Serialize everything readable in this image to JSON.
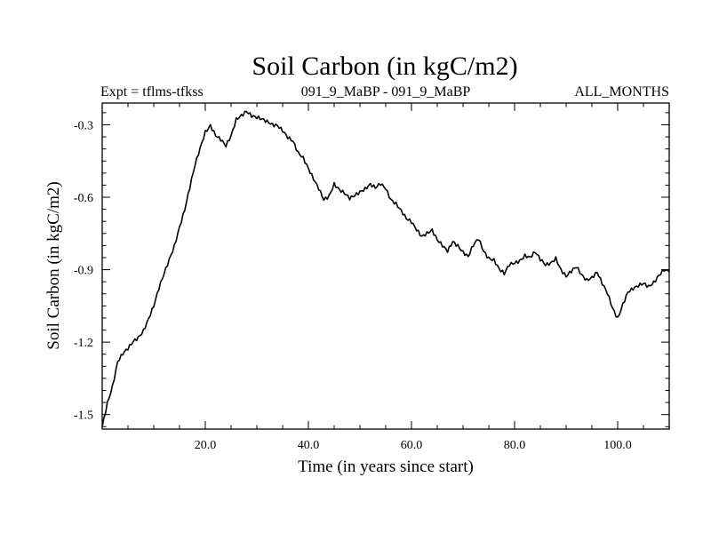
{
  "chart_data": {
    "type": "line",
    "title": "Soil Carbon (in kgC/m2)",
    "subtitle_left": "Expt = tflms-tfkss",
    "subtitle_center": "091_9_MaBP - 091_9_MaBP",
    "subtitle_right": "ALL_MONTHS",
    "xlabel": "Time (in years since start)",
    "ylabel": "Soil Carbon (in kgC/m2)",
    "xlim": [
      0,
      110
    ],
    "ylim": [
      -1.56,
      -0.21
    ],
    "xticks": [
      20,
      40,
      60,
      80,
      100
    ],
    "xtick_labels": [
      "20.0",
      "40.0",
      "60.0",
      "80.0",
      "100.0"
    ],
    "yticks": [
      -1.5,
      -1.2,
      -0.9,
      -0.6,
      -0.3
    ],
    "ytick_labels": [
      "-1.5",
      "-1.2",
      "-0.9",
      "-0.6",
      "-0.3"
    ],
    "grid": false,
    "series": [
      {
        "name": "Soil Carbon",
        "x": [
          0,
          1,
          2,
          3,
          4,
          5,
          6,
          7,
          8,
          9,
          10,
          11,
          12,
          13,
          14,
          15,
          16,
          17,
          18,
          19,
          20,
          21,
          22,
          23,
          24,
          25,
          26,
          27,
          28,
          29,
          30,
          31,
          32,
          33,
          34,
          35,
          36,
          37,
          38,
          39,
          40,
          41,
          42,
          43,
          44,
          45,
          46,
          47,
          48,
          49,
          50,
          51,
          52,
          53,
          54,
          55,
          56,
          57,
          58,
          59,
          60,
          61,
          62,
          63,
          64,
          65,
          66,
          67,
          68,
          69,
          70,
          71,
          72,
          73,
          74,
          75,
          76,
          77,
          78,
          79,
          80,
          81,
          82,
          83,
          84,
          85,
          86,
          87,
          88,
          89,
          90,
          91,
          92,
          93,
          94,
          95,
          96,
          97,
          98,
          99,
          100,
          101,
          102,
          103,
          104,
          105,
          106,
          107,
          108,
          109,
          110
        ],
        "values": [
          -1.55,
          -1.45,
          -1.38,
          -1.28,
          -1.25,
          -1.23,
          -1.2,
          -1.18,
          -1.15,
          -1.1,
          -1.05,
          -0.98,
          -0.92,
          -0.86,
          -0.8,
          -0.72,
          -0.65,
          -0.56,
          -0.47,
          -0.4,
          -0.33,
          -0.3,
          -0.34,
          -0.36,
          -0.39,
          -0.35,
          -0.28,
          -0.26,
          -0.24,
          -0.26,
          -0.27,
          -0.28,
          -0.29,
          -0.3,
          -0.3,
          -0.32,
          -0.35,
          -0.37,
          -0.42,
          -0.44,
          -0.48,
          -0.52,
          -0.56,
          -0.61,
          -0.6,
          -0.55,
          -0.57,
          -0.58,
          -0.6,
          -0.59,
          -0.58,
          -0.57,
          -0.55,
          -0.56,
          -0.54,
          -0.56,
          -0.61,
          -0.63,
          -0.66,
          -0.69,
          -0.7,
          -0.73,
          -0.76,
          -0.75,
          -0.74,
          -0.78,
          -0.8,
          -0.82,
          -0.78,
          -0.8,
          -0.83,
          -0.85,
          -0.8,
          -0.77,
          -0.82,
          -0.85,
          -0.86,
          -0.9,
          -0.92,
          -0.88,
          -0.87,
          -0.86,
          -0.84,
          -0.85,
          -0.83,
          -0.86,
          -0.88,
          -0.87,
          -0.85,
          -0.9,
          -0.93,
          -0.91,
          -0.89,
          -0.92,
          -0.94,
          -0.93,
          -0.91,
          -0.96,
          -1.0,
          -1.06,
          -1.1,
          -1.04,
          -0.99,
          -0.98,
          -0.97,
          -0.96,
          -0.97,
          -0.95,
          -0.92,
          -0.9,
          -0.91
        ]
      }
    ]
  }
}
